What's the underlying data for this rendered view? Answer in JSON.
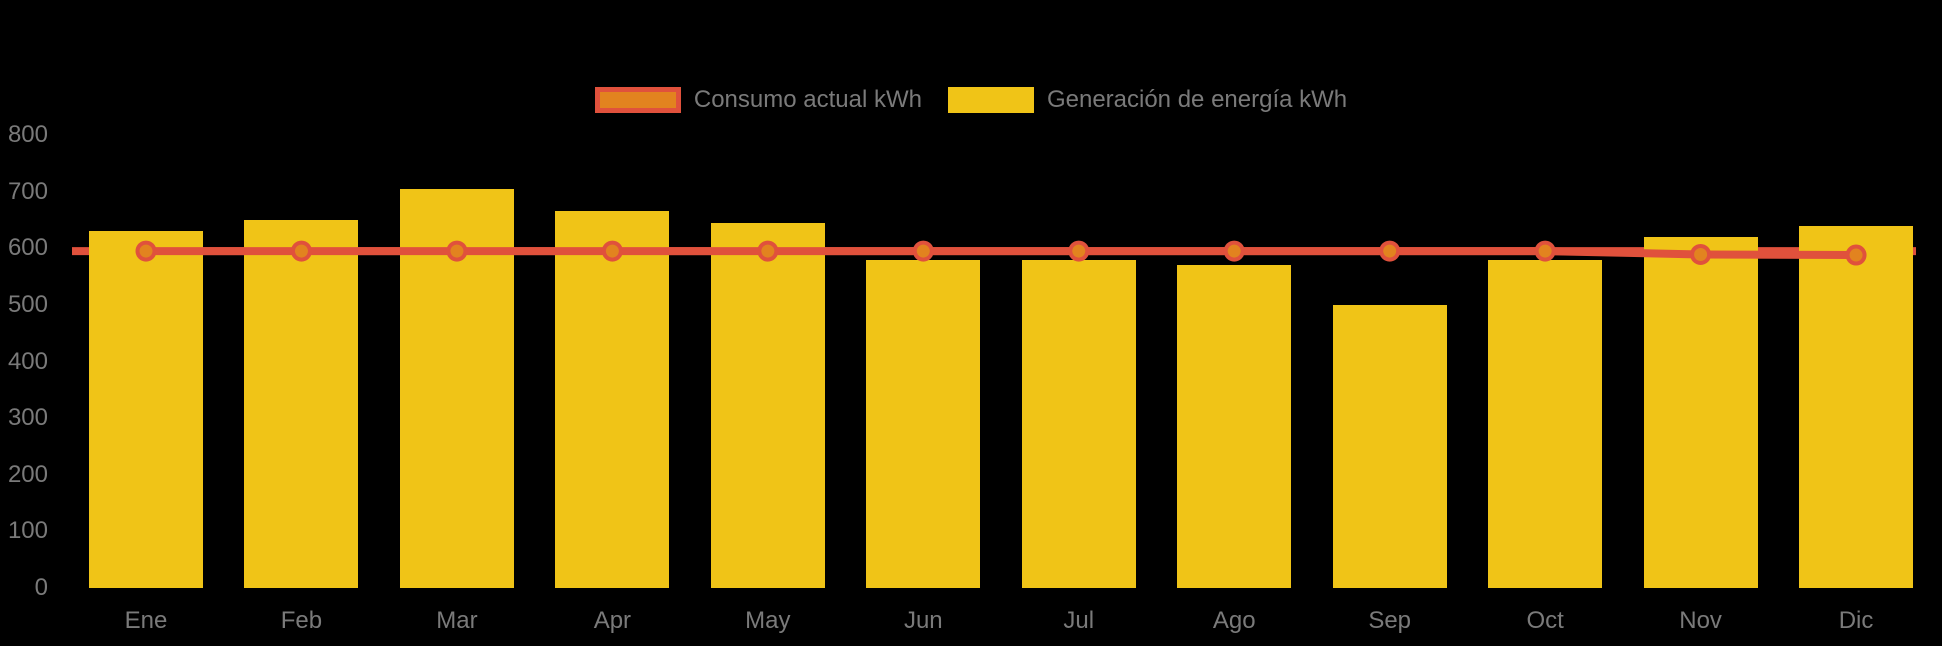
{
  "page": {
    "background": "#000000",
    "axis_text_color": "#7a7a7a"
  },
  "chart_data": {
    "type": "bar",
    "title": "",
    "xlabel": "",
    "ylabel": "",
    "categories": [
      "Ene",
      "Feb",
      "Mar",
      "Apr",
      "May",
      "Jun",
      "Jul",
      "Ago",
      "Sep",
      "Oct",
      "Nov",
      "Dic"
    ],
    "series": [
      {
        "name": "Consumo actual kWh",
        "type": "line",
        "color": "#e0513c",
        "marker_fill": "#e2831f",
        "values": [
          595,
          595,
          595,
          595,
          595,
          595,
          595,
          595,
          595,
          595,
          589,
          588
        ]
      },
      {
        "name": "Generación de energía kWh",
        "type": "bar",
        "color": "#f0c417",
        "values": [
          630,
          650,
          705,
          665,
          645,
          580,
          580,
          570,
          500,
          580,
          620,
          640
        ]
      }
    ],
    "ylim": [
      0,
      800
    ],
    "yticks": [
      0,
      100,
      200,
      300,
      400,
      500,
      600,
      700,
      800
    ],
    "grid": false,
    "legend_position": "top",
    "background": "#000000",
    "axis_text_color": "#7a7a7a"
  }
}
